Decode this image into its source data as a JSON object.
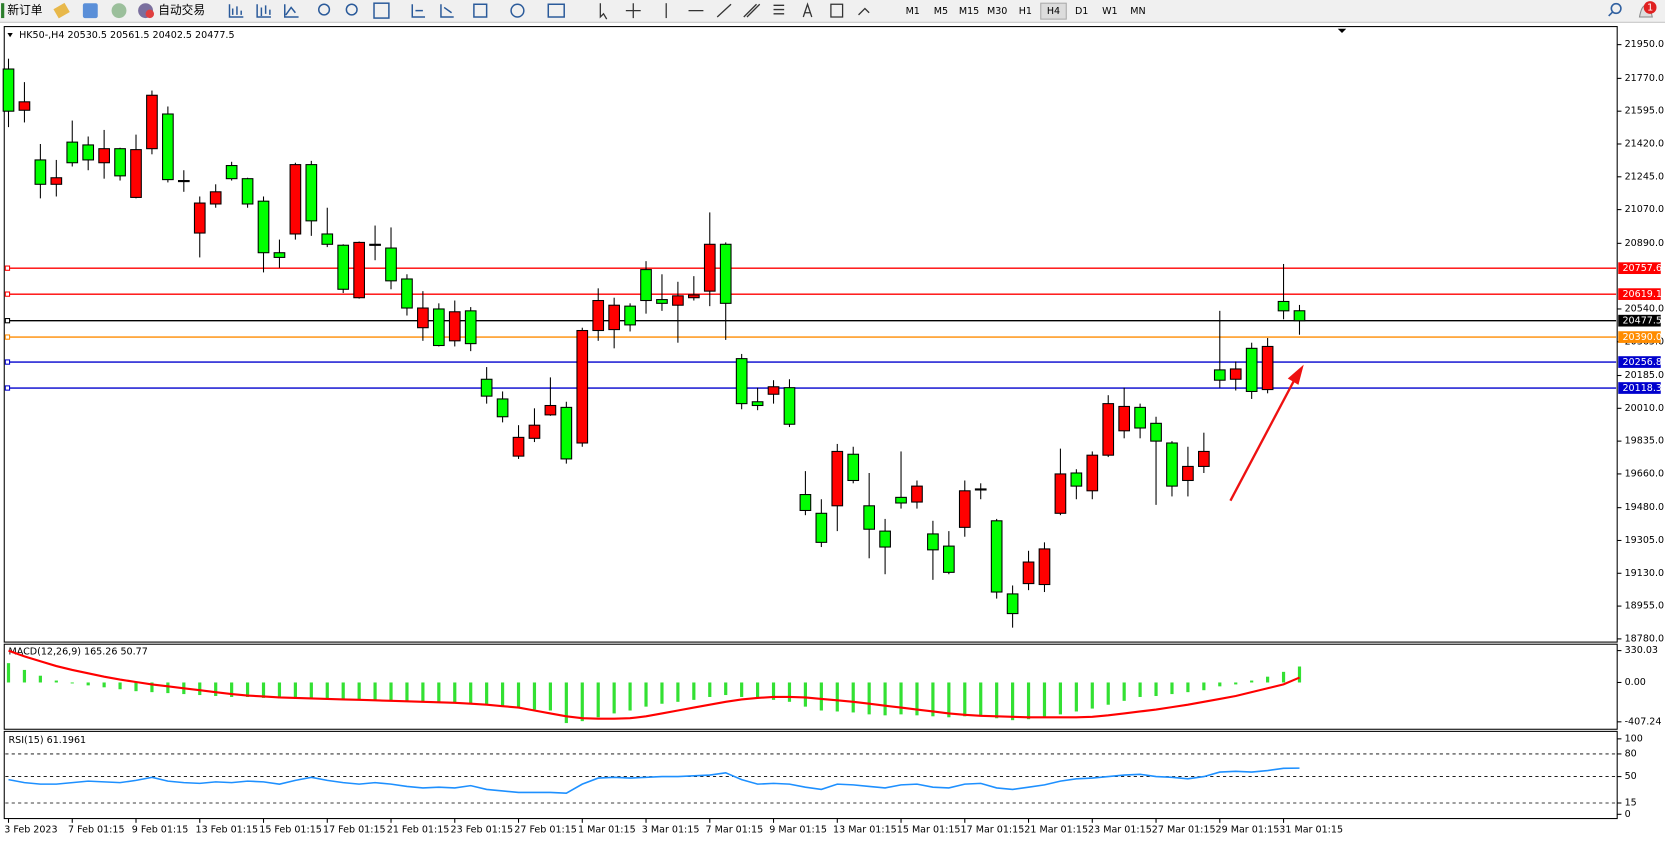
{
  "toolbar": {
    "new_order": "新订单",
    "auto_trading": "自动交易",
    "timeframes": [
      "M1",
      "M5",
      "M15",
      "M30",
      "H1",
      "H4",
      "D1",
      "W1",
      "MN"
    ],
    "active_timeframe": "H4",
    "notifications": 1
  },
  "chart": {
    "type": "candlestick",
    "symbol": "HK50-,H4",
    "ohlc": [
      20530.5,
      20561.5,
      20402.5,
      20477.5
    ],
    "bull_color": "#ff0000",
    "bear_color": "#00ff00",
    "ylim": [
      18763,
      22035
    ],
    "yticks": [
      {
        "value": 21950,
        "label": "21950.0"
      },
      {
        "value": 21770,
        "label": "21770.0"
      },
      {
        "value": 21595,
        "label": "21595.0"
      },
      {
        "value": 21420,
        "label": "21420.0"
      },
      {
        "value": 21245,
        "label": "21245.0"
      },
      {
        "value": 21070,
        "label": "21070.0"
      },
      {
        "value": 20890,
        "label": "20890.0"
      },
      {
        "value": 20540,
        "label": "20540.0"
      },
      {
        "value": 20365,
        "label": "20365.0"
      },
      {
        "value": 20185,
        "label": "20185.0"
      },
      {
        "value": 20010,
        "label": "20010.0"
      },
      {
        "value": 19835,
        "label": "19835.0"
      },
      {
        "value": 19660,
        "label": "19660.0"
      },
      {
        "value": 19480,
        "label": "19480.0"
      },
      {
        "value": 19305,
        "label": "19305.0"
      },
      {
        "value": 19130,
        "label": "19130.0"
      },
      {
        "value": 18955,
        "label": "18955.0"
      },
      {
        "value": 18780,
        "label": "18780.0"
      }
    ],
    "price_lines": [
      {
        "level": 20757.6,
        "color": "#ff0000"
      },
      {
        "level": 20619.1,
        "color": "#ff0000"
      },
      {
        "level": {
          "value": 20390,
          "label": "20390.0"
        },
        "color": "#ff8c00"
      },
      {
        "level": 20256.8,
        "color": "#0000cd"
      },
      {
        "level": 20118.3,
        "color": "#0000cd"
      }
    ],
    "current_line_color": "#000000",
    "candles": [
      [
        21820,
        21875,
        21510,
        21595
      ],
      [
        21600,
        21750,
        21535,
        21645
      ],
      [
        21335,
        21420,
        21130,
        21205
      ],
      [
        21205,
        21335,
        21140,
        21240
      ],
      [
        21430,
        21545,
        21300,
        21320
      ],
      [
        21415,
        21460,
        21280,
        21335
      ],
      [
        21320,
        21495,
        21235,
        21395
      ],
      [
        21395,
        21400,
        21225,
        21250
      ],
      [
        21135,
        21470,
        21130,
        21390
      ],
      [
        21395,
        21705,
        21365,
        21680
      ],
      [
        21580,
        21620,
        21215,
        21230
      ],
      [
        21225,
        21280,
        21165,
        21220
      ],
      [
        20945,
        21140,
        20815,
        21105
      ],
      [
        21100,
        21205,
        21080,
        21165
      ],
      [
        21305,
        21325,
        21225,
        21235
      ],
      [
        21235,
        21240,
        21080,
        21100
      ],
      [
        21115,
        21140,
        20735,
        20840
      ],
      [
        20840,
        20910,
        20760,
        20815
      ],
      [
        20940,
        21320,
        20910,
        21310
      ],
      [
        21310,
        21330,
        20930,
        21010
      ],
      [
        20940,
        21080,
        20870,
        20885
      ],
      [
        20880,
        20885,
        20625,
        20645
      ],
      [
        20600,
        20900,
        20595,
        20895
      ],
      [
        20885,
        20985,
        20800,
        20880
      ],
      [
        20865,
        20975,
        20645,
        20690
      ],
      [
        20700,
        20725,
        20505,
        20545
      ],
      [
        20440,
        20635,
        20370,
        20545
      ],
      [
        20540,
        20570,
        20340,
        20345
      ],
      [
        20370,
        20585,
        20340,
        20525
      ],
      [
        20530,
        20550,
        20315,
        20355
      ],
      [
        20165,
        20230,
        20035,
        20075
      ],
      [
        20060,
        20100,
        19935,
        19965
      ],
      [
        19755,
        19920,
        19740,
        19855
      ],
      [
        19850,
        20010,
        19830,
        19920
      ],
      [
        19975,
        20175,
        19970,
        20025
      ],
      [
        20015,
        20045,
        19715,
        19740
      ],
      [
        19825,
        20440,
        19805,
        20425
      ],
      [
        20425,
        20650,
        20370,
        20585
      ],
      [
        20430,
        20600,
        20330,
        20560
      ],
      [
        20555,
        20570,
        20420,
        20455
      ],
      [
        20750,
        20795,
        20515,
        20585
      ],
      [
        20590,
        20725,
        20530,
        20570
      ],
      [
        20560,
        20685,
        20360,
        20610
      ],
      [
        20600,
        20715,
        20585,
        20615
      ],
      [
        20635,
        21055,
        20555,
        20885
      ],
      [
        20885,
        20895,
        20375,
        20570
      ],
      [
        20275,
        20300,
        20005,
        20035
      ],
      [
        20045,
        20120,
        20000,
        20025
      ],
      [
        20085,
        20160,
        20035,
        20125
      ],
      [
        20120,
        20165,
        19910,
        19925
      ],
      [
        19550,
        19675,
        19440,
        19465
      ],
      [
        19450,
        19525,
        19270,
        19295
      ],
      [
        19490,
        19820,
        19355,
        19780
      ],
      [
        19765,
        19805,
        19610,
        19625
      ],
      [
        19490,
        19665,
        19210,
        19365
      ],
      [
        19355,
        19420,
        19125,
        19270
      ],
      [
        19535,
        19780,
        19475,
        19505
      ],
      [
        19510,
        19625,
        19475,
        19595
      ],
      [
        19340,
        19410,
        19095,
        19255
      ],
      [
        19275,
        19355,
        19125,
        19135
      ],
      [
        19375,
        19625,
        19325,
        19570
      ],
      [
        19580,
        19610,
        19525,
        19575
      ],
      [
        19410,
        19420,
        18995,
        19030
      ],
      [
        19020,
        19065,
        18840,
        18915
      ],
      [
        19075,
        19250,
        19040,
        19190
      ],
      [
        19070,
        19295,
        19030,
        19260
      ],
      [
        19450,
        19795,
        19440,
        19660
      ],
      [
        19665,
        19685,
        19525,
        19595
      ],
      [
        19570,
        19780,
        19525,
        19760
      ],
      [
        19760,
        20080,
        19750,
        20035
      ],
      [
        19890,
        20120,
        19850,
        20020
      ],
      [
        20015,
        20035,
        19850,
        19905
      ],
      [
        19930,
        19965,
        19495,
        19835
      ],
      [
        19825,
        19835,
        19540,
        19595
      ],
      [
        19625,
        19805,
        19540,
        19700
      ],
      [
        19700,
        19880,
        19665,
        19780
      ],
      [
        20215,
        20530,
        20120,
        20160
      ],
      [
        20165,
        20260,
        20105,
        20220
      ],
      [
        20330,
        20360,
        20060,
        20100
      ],
      [
        20110,
        20385,
        20090,
        20340
      ],
      [
        20580,
        20780,
        20485,
        20530
      ]
    ],
    "time_labels": [
      "3 Feb 2023",
      "7 Feb 01:15",
      "9 Feb 01:15",
      "13 Feb 01:15",
      "15 Feb 01:15",
      "17 Feb 01:15",
      "21 Feb 01:15",
      "23 Feb 01:15",
      "27 Feb 01:15",
      "1 Mar 01:15",
      "3 Mar 01:15",
      "7 Mar 01:15",
      "9 Mar 01:15",
      "13 Mar 01:15",
      "15 Mar 01:15",
      "17 Mar 01:15",
      "21 Mar 01:15",
      "23 Mar 01:15",
      "27 Mar 01:15",
      "29 Mar 01:15",
      "31 Mar 01:15"
    ]
  },
  "macd": {
    "title": "MACD(12,26,9)",
    "values": [
      165.26,
      50.77
    ],
    "ylim": [
      -484,
      396
    ],
    "yticks": [
      330.03,
      {
        "value": 0,
        "label": "0.00"
      },
      -407.24
    ],
    "histogram_color": "#33e033",
    "signal_color": "#ff0000",
    "histogram": [
      200,
      130,
      70,
      20,
      -10,
      -30,
      -50,
      -70,
      -90,
      -100,
      -110,
      -120,
      -130,
      -140,
      -150,
      -150,
      -160,
      -165,
      -170,
      -165,
      -165,
      -170,
      -175,
      -180,
      -185,
      -195,
      -200,
      -205,
      -210,
      -215,
      -225,
      -240,
      -260,
      -280,
      -290,
      -420,
      -400,
      -360,
      -320,
      -290,
      -250,
      -220,
      -200,
      -180,
      -150,
      -130,
      -150,
      -160,
      -180,
      -200,
      -250,
      -290,
      -300,
      -310,
      -330,
      -340,
      -330,
      -340,
      -350,
      -360,
      -350,
      -350,
      -370,
      -390,
      -380,
      -360,
      -330,
      -300,
      -270,
      -230,
      -190,
      -150,
      -140,
      -120,
      -100,
      -80,
      -40,
      -20,
      20,
      60,
      110
    ],
    "signal": [
      330,
      270,
      220,
      170,
      130,
      95,
      60,
      30,
      5,
      -20,
      -40,
      -60,
      -80,
      -100,
      -120,
      -135,
      -145,
      -155,
      -160,
      -165,
      -170,
      -175,
      -180,
      -185,
      -190,
      -195,
      -200,
      -205,
      -210,
      -220,
      -230,
      -245,
      -260,
      -290,
      -320,
      -350,
      -370,
      -375,
      -375,
      -370,
      -350,
      -320,
      -290,
      -260,
      -230,
      -200,
      -175,
      -160,
      -150,
      -150,
      -155,
      -170,
      -185,
      -200,
      -220,
      -240,
      -260,
      -280,
      -300,
      -320,
      -335,
      -345,
      -350,
      -355,
      -360,
      -360,
      -360,
      -360,
      -355,
      -340,
      -320,
      -300,
      -280,
      -255,
      -230,
      -200,
      -170,
      -140,
      -100,
      -60,
      -20
    ]
  },
  "rsi": {
    "title": "RSI(15)",
    "value": 61.1961,
    "ylim": [
      -5.6,
      109.9
    ],
    "yticks": [
      100,
      80,
      50,
      15,
      0
    ],
    "levels": [
      80,
      50,
      15
    ],
    "color": "#1e90ff",
    "values": [
      46,
      42,
      40,
      40,
      42,
      44,
      43,
      42,
      45,
      49,
      44,
      42,
      41,
      43,
      42,
      44,
      43,
      40,
      45,
      49,
      45,
      42,
      40,
      42,
      40,
      37,
      35,
      36,
      35,
      38,
      33,
      31,
      29,
      29,
      29,
      28,
      40,
      48,
      49,
      48,
      49,
      50,
      50,
      51,
      52,
      55,
      46,
      40,
      41,
      40,
      36,
      33,
      40,
      39,
      37,
      35,
      39,
      40,
      36,
      35,
      40,
      41,
      35,
      33,
      36,
      39,
      44,
      47,
      48,
      50,
      52,
      53,
      50,
      49,
      47,
      50,
      56,
      57,
      56,
      58,
      61
    ]
  }
}
